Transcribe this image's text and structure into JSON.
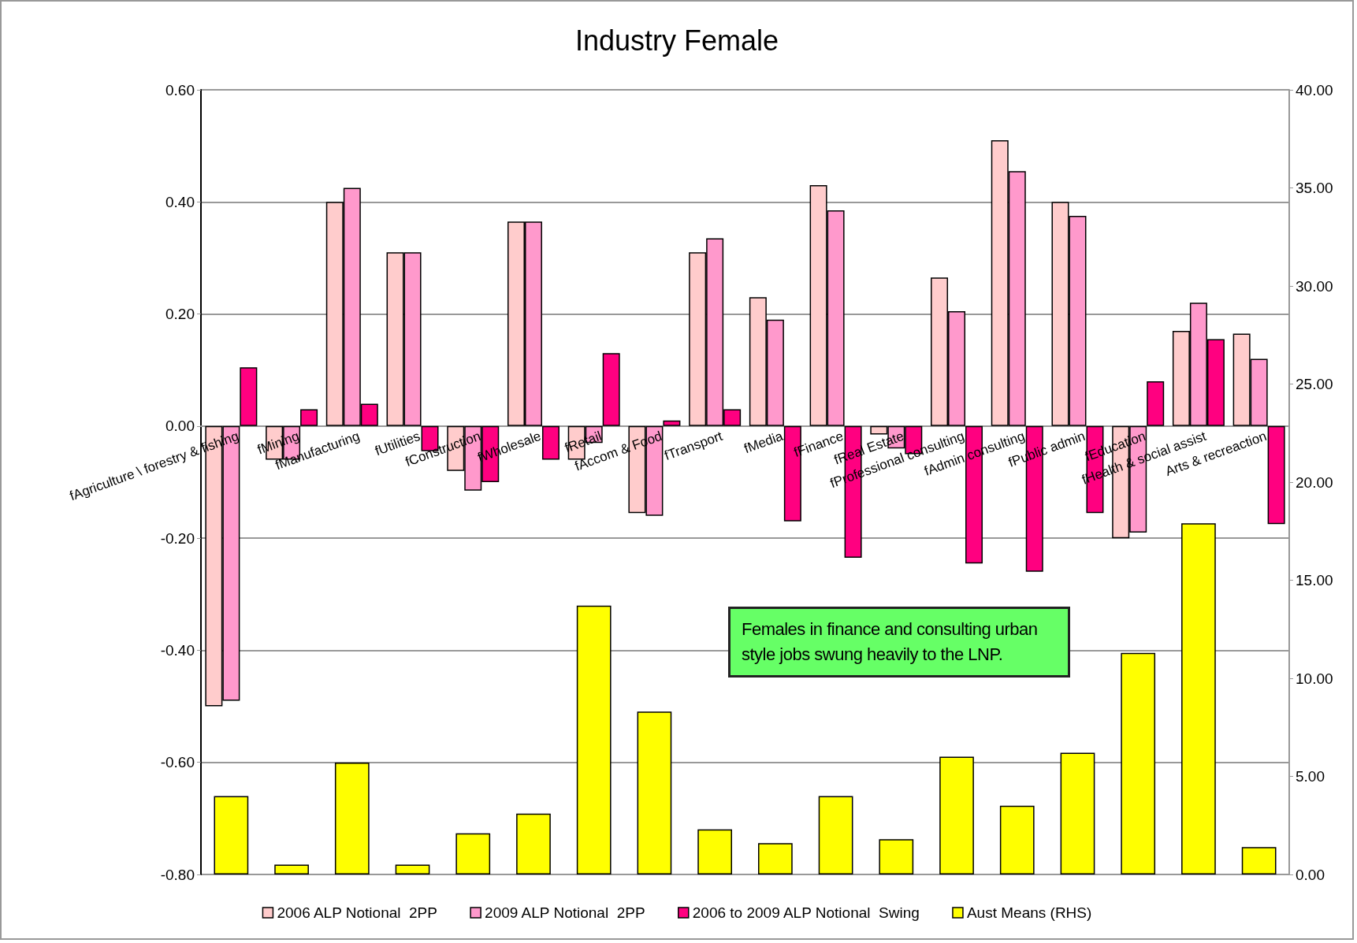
{
  "chart_data": {
    "type": "bar",
    "title": "Industry Female",
    "categories": [
      "fAgriculture \\ forestry & fishing",
      "fMining",
      "fManufacturing",
      "fUtilities",
      "fConstruction",
      "fWholesale",
      "fRetail",
      "fAccom & Food",
      "fTransport",
      "fMedia",
      "fFinance",
      "fReal Estate",
      "fProfessional consulting",
      "fAdmin consulting",
      "fPublic admin",
      "fEducation",
      "fHealth & social assist",
      "Arts & recreaction"
    ],
    "series": [
      {
        "name": "2006 ALP Notional  2PP",
        "color": "#ffcccc",
        "values": [
          -0.5,
          -0.06,
          0.4,
          0.31,
          -0.08,
          0.365,
          -0.06,
          -0.155,
          0.31,
          0.23,
          0.43,
          -0.015,
          0.265,
          0.51,
          0.4,
          -0.2,
          0.17,
          0.165
        ]
      },
      {
        "name": "2009 ALP Notional  2PP",
        "color": "#ff99cc",
        "values": [
          -0.49,
          -0.06,
          0.425,
          0.31,
          -0.115,
          0.365,
          -0.03,
          -0.16,
          0.335,
          0.19,
          0.385,
          -0.04,
          0.205,
          0.455,
          0.375,
          -0.19,
          0.22,
          0.12
        ]
      },
      {
        "name": "2006 to 2009 ALP Notional  Swing",
        "color": "#ff0080",
        "values": [
          0.105,
          0.03,
          0.04,
          -0.045,
          -0.1,
          -0.06,
          0.13,
          0.01,
          0.03,
          -0.17,
          -0.235,
          -0.05,
          -0.245,
          -0.26,
          -0.155,
          0.08,
          0.155,
          -0.175
        ]
      },
      {
        "name": "Aust Means (RHS)",
        "color": "#ffff00",
        "axis": "y2",
        "values": [
          4.0,
          0.5,
          5.7,
          0.5,
          2.1,
          3.1,
          13.7,
          8.3,
          2.3,
          1.6,
          4.0,
          1.8,
          6.0,
          3.5,
          6.2,
          11.3,
          17.9,
          1.4
        ]
      }
    ],
    "ylim": [
      -0.8,
      0.6
    ],
    "yticks": [
      {
        "value": -0.8,
        "label": "-0.80"
      },
      {
        "value": -0.6,
        "label": "-0.60"
      },
      {
        "value": -0.4,
        "label": "-0.40"
      },
      {
        "value": -0.2,
        "label": "-0.20"
      },
      {
        "value": 0,
        "label": "0.00"
      },
      {
        "value": 0.2,
        "label": "0.20"
      },
      {
        "value": 0.4,
        "label": "0.40"
      },
      {
        "value": 0.6,
        "label": "0.60"
      }
    ],
    "y2lim": [
      0,
      40
    ],
    "y2ticks": [
      {
        "value": 0,
        "label": "0.00"
      },
      {
        "value": 5,
        "label": "5.00"
      },
      {
        "value": 10,
        "label": "10.00"
      },
      {
        "value": 15,
        "label": "15.00"
      },
      {
        "value": 20,
        "label": "20.00"
      },
      {
        "value": 25,
        "label": "25.00"
      },
      {
        "value": 30,
        "label": "30.00"
      },
      {
        "value": 35,
        "label": "35.00"
      },
      {
        "value": 40,
        "label": "40.00"
      }
    ],
    "grid": "y",
    "legend": "bottom",
    "annotations": [
      "Females in finance and consulting urban style jobs swung heavily to the LNP."
    ]
  }
}
